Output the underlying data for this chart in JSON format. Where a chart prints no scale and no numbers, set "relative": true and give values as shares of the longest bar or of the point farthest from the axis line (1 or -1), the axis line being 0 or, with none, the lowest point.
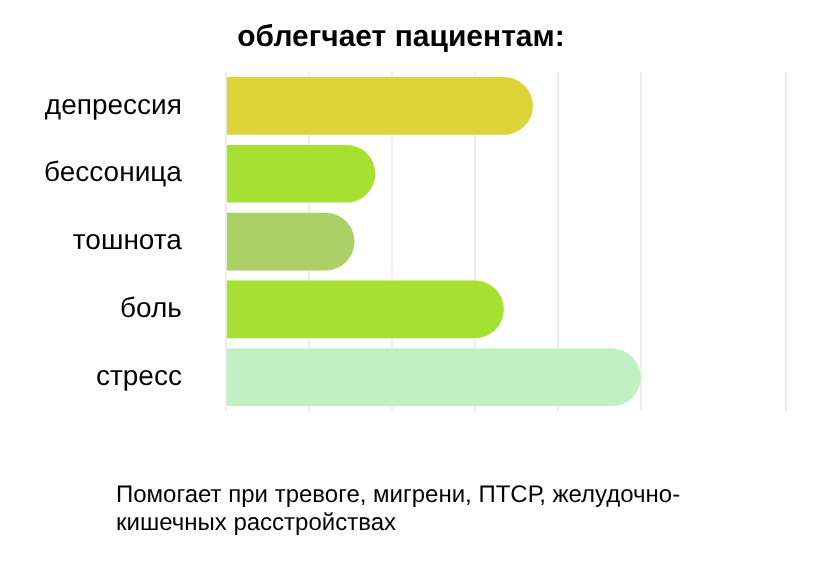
{
  "chart_data": {
    "type": "bar",
    "orientation": "horizontal",
    "relative": true,
    "title": "облегчает пациентам:",
    "categories": [
      "депрессия",
      "бессоница",
      "тошнота",
      "боль",
      "стресс"
    ],
    "values": [
      0.74,
      0.36,
      0.31,
      0.67,
      1
    ],
    "colors": [
      "#dcd43a",
      "#a5e033",
      "#abd065",
      "#a5e033",
      "#c0efc2"
    ],
    "grid": "x",
    "legend": false,
    "annotations": [
      "Помогает при тревоге, мигрени, ПТСР, желудочно-кишечных расстройствах"
    ]
  }
}
